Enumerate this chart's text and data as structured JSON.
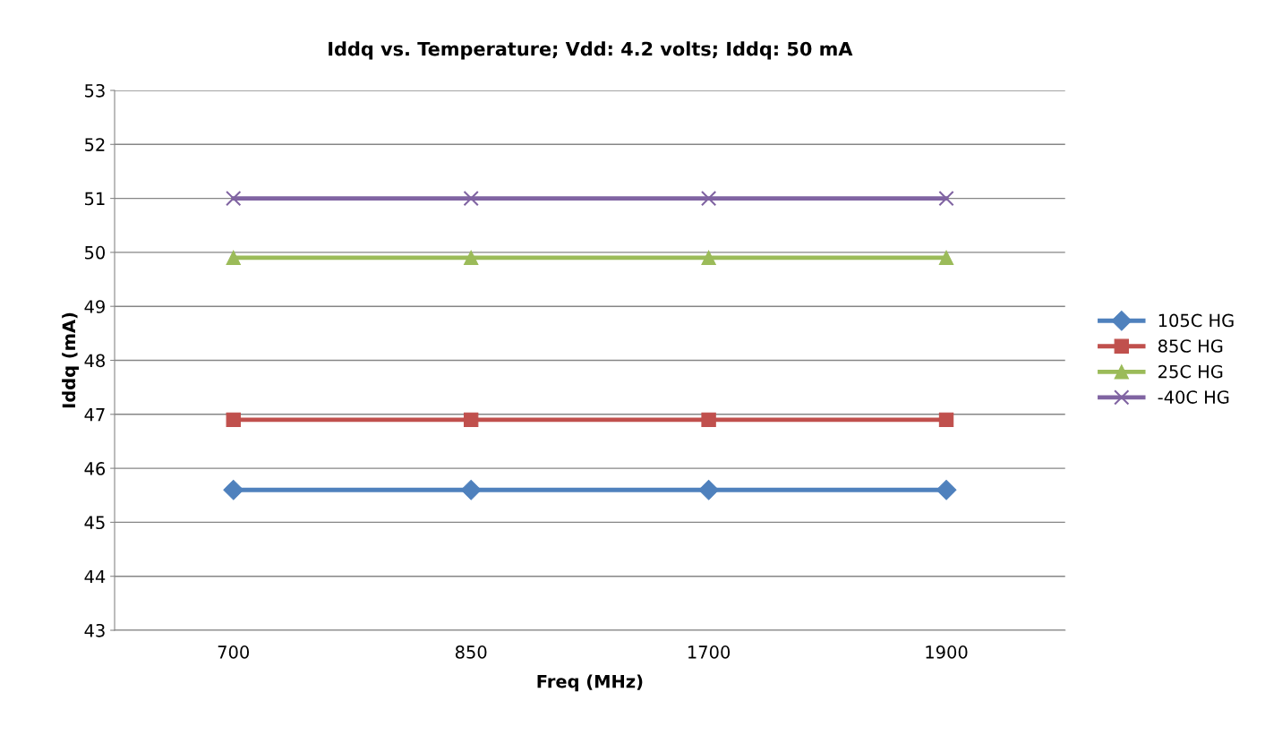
{
  "chart_data": {
    "type": "line",
    "title": "Iddq vs. Temperature; Vdd: 4.2 volts; Iddq: 50 mA",
    "xlabel": "Freq (MHz)",
    "ylabel": "Iddq (mA)",
    "categories": [
      "700",
      "850",
      "1700",
      "1900"
    ],
    "series": [
      {
        "name": "105C HG",
        "color": "#4f81bd",
        "marker": "diamond",
        "values": [
          45.6,
          45.6,
          45.6,
          45.6
        ]
      },
      {
        "name": "85C HG",
        "color": "#c0504d",
        "marker": "square",
        "values": [
          46.9,
          46.9,
          46.9,
          46.9
        ]
      },
      {
        "name": "25C HG",
        "color": "#9bbb59",
        "marker": "triangle",
        "values": [
          49.9,
          49.9,
          49.9,
          49.9
        ]
      },
      {
        "name": "-40C HG",
        "color": "#8064a2",
        "marker": "cross",
        "values": [
          51.0,
          51.0,
          51.0,
          51.0
        ]
      }
    ],
    "ylim": [
      43,
      53
    ],
    "yticks": [
      43,
      44,
      45,
      46,
      47,
      48,
      49,
      50,
      51,
      52,
      53
    ],
    "grid": "y",
    "legend": "right",
    "line_style": "solid"
  }
}
